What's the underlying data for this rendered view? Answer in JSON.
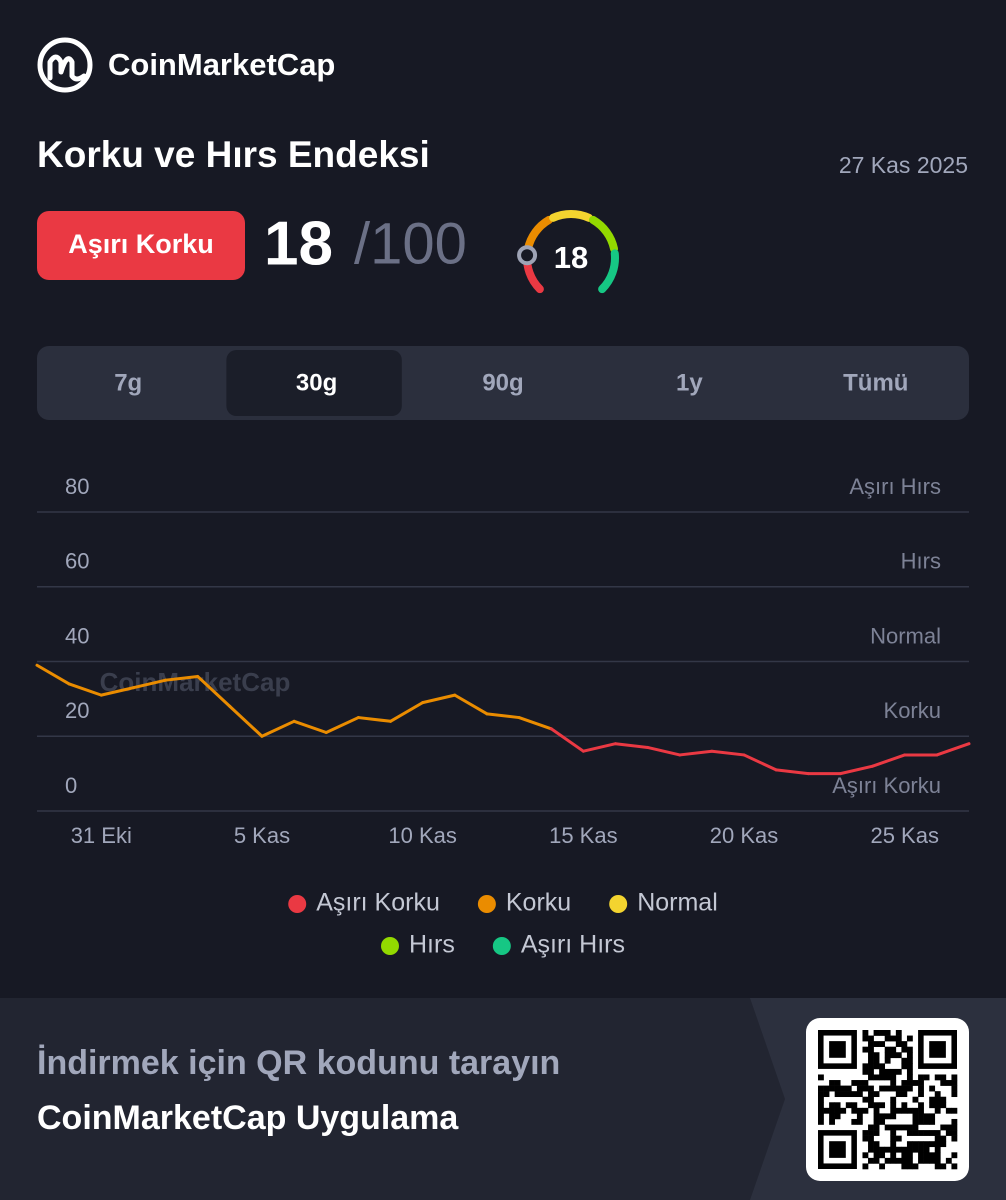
{
  "header": {
    "brand": "CoinMarketCap"
  },
  "title": "Korku ve Hırs Endeksi",
  "date": "27 Kas 2025",
  "index": {
    "badge": "Aşırı Korku",
    "value": 18,
    "max_label": "/100",
    "max": 100
  },
  "tabs": [
    "7g",
    "30g",
    "90g",
    "1y",
    "Tümü"
  ],
  "active_tab": 1,
  "chart_data": {
    "type": "line",
    "watermark": "CoinMarketCap",
    "categories": [
      null,
      null,
      "31 Eki",
      null,
      null,
      null,
      null,
      "5 Kas",
      null,
      null,
      null,
      null,
      "10 Kas",
      null,
      null,
      null,
      null,
      "15 Kas",
      null,
      null,
      null,
      null,
      "20 Kas",
      null,
      null,
      null,
      null,
      "25 Kas",
      null,
      null
    ],
    "values": [
      39,
      34,
      31,
      33,
      35,
      36,
      28,
      20,
      24,
      21,
      25,
      24,
      29,
      31,
      26,
      25,
      22,
      16,
      18,
      17,
      15,
      16,
      15,
      11,
      10,
      10,
      12,
      15,
      15,
      18
    ],
    "ylim": [
      0,
      80
    ],
    "yticks": [
      0,
      20,
      40,
      60,
      80
    ],
    "grid": true,
    "zones": [
      {
        "name": "Aşırı Korku",
        "color": "#ea3943"
      },
      {
        "name": "Korku",
        "color": "#ea8c00"
      },
      {
        "name": "Normal",
        "color": "#f3d42f"
      },
      {
        "name": "Hırs",
        "color": "#93d900"
      },
      {
        "name": "Aşırı Hırs",
        "color": "#16c784"
      }
    ]
  },
  "footer": {
    "line1": "İndirmek için QR kodunu tarayın",
    "line2": "CoinMarketCap Uygulama"
  }
}
